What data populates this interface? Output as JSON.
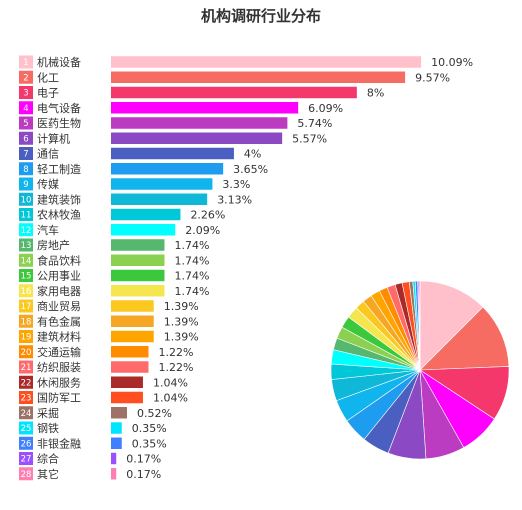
{
  "chart_data": {
    "type": "bar",
    "title": "机构调研行业分布",
    "xlabel": "",
    "ylabel": "",
    "xlim": [
      0,
      10.5
    ],
    "value_suffix": "%",
    "grid": false,
    "legend": "none",
    "categories": [
      "机械设备",
      "化工",
      "电子",
      "电气设备",
      "医药生物",
      "计算机",
      "通信",
      "轻工制造",
      "传媒",
      "建筑装饰",
      "农林牧渔",
      "汽车",
      "房地产",
      "食品饮料",
      "公用事业",
      "家用电器",
      "商业贸易",
      "有色金属",
      "建筑材料",
      "交通运输",
      "纺织服装",
      "休闲服务",
      "国防军工",
      "采掘",
      "钢铁",
      "非银金融",
      "综合",
      "其它"
    ],
    "value_labels": [
      "10.09%",
      "9.57%",
      "8%",
      "6.09%",
      "5.74%",
      "5.57%",
      "4%",
      "3.65%",
      "3.3%",
      "3.13%",
      "2.26%",
      "2.09%",
      "1.74%",
      "1.74%",
      "1.74%",
      "1.74%",
      "1.39%",
      "1.39%",
      "1.39%",
      "1.22%",
      "1.22%",
      "1.04%",
      "1.04%",
      "0.52%",
      "0.35%",
      "0.35%",
      "0.17%",
      "0.17%"
    ],
    "values": [
      10.09,
      9.57,
      8,
      6.09,
      5.74,
      5.57,
      4,
      3.65,
      3.3,
      3.13,
      2.26,
      2.09,
      1.74,
      1.74,
      1.74,
      1.74,
      1.39,
      1.39,
      1.39,
      1.22,
      1.22,
      1.04,
      1.04,
      0.52,
      0.35,
      0.35,
      0.17,
      0.17
    ],
    "colors": [
      "#ffc0cb",
      "#f76c62",
      "#f4386c",
      "#ff00ff",
      "#bb3cc0",
      "#8b4ac4",
      "#4a5fc0",
      "#1e9cf0",
      "#11b5ee",
      "#0fb8d6",
      "#00c8d8",
      "#00ffff",
      "#55b86e",
      "#8cd050",
      "#3cc83c",
      "#f5e650",
      "#fbc820",
      "#f5a623",
      "#ffa500",
      "#ff8c00",
      "#ff6a6a",
      "#aa2a2a",
      "#ff4f20",
      "#9c7366",
      "#00e5ff",
      "#4080ff",
      "#9a50ff",
      "#ff80b0"
    ],
    "pie": {
      "type": "pie",
      "start": "top",
      "direction": "clockwise"
    }
  }
}
